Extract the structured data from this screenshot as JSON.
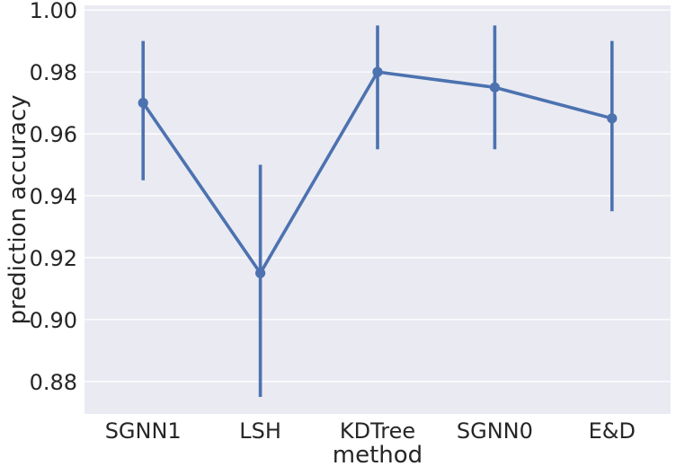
{
  "chart_data": {
    "type": "line",
    "style": "point-plot-with-error-bars",
    "xlabel": "method",
    "ylabel": "prediction accuracy",
    "categories": [
      "SGNN1",
      "LSH",
      "KDTree",
      "SGNN0",
      "E&D"
    ],
    "series": [
      {
        "values": [
          0.97,
          0.915,
          0.98,
          0.975,
          0.965
        ],
        "error_low": [
          0.945,
          0.875,
          0.955,
          0.955,
          0.935
        ],
        "error_high": [
          0.99,
          0.95,
          0.995,
          0.995,
          0.99
        ]
      }
    ],
    "yticks": [
      "0.88",
      "0.90",
      "0.92",
      "0.94",
      "0.96",
      "0.98",
      "1.00"
    ],
    "ylim": [
      0.8695,
      1.0015
    ],
    "grid": true,
    "colors": {
      "series": "#4c72b0",
      "plot_background": "#eaeaf2",
      "grid": "#ffffff",
      "text": "#262626"
    }
  }
}
